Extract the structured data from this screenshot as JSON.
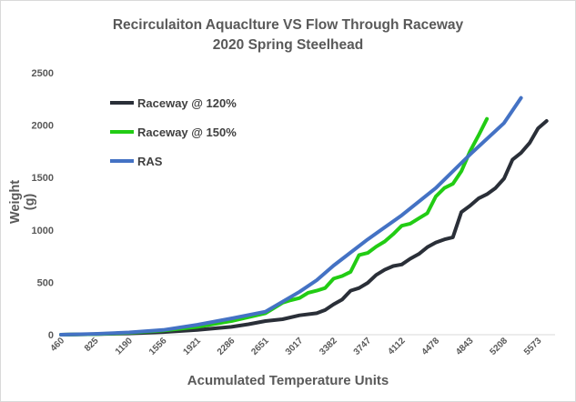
{
  "chart_data": {
    "type": "line",
    "title": "Recirculaiton Aquaclture VS Flow Through Raceway",
    "subtitle": "2020 Spring Steelhead",
    "xlabel": "Acumulated Temperature Units",
    "ylabel": "Weight (g)",
    "x_tick_labels": [
      "460",
      "825",
      "1190",
      "1556",
      "1921",
      "2286",
      "2651",
      "3017",
      "3382",
      "3747",
      "4112",
      "4478",
      "4843",
      "5208",
      "5573"
    ],
    "y_ticks": [
      0,
      500,
      1000,
      1500,
      2000,
      2500
    ],
    "xlim": [
      460,
      5755
    ],
    "ylim": [
      0,
      2500
    ],
    "grid": false,
    "legend_position": "top-left",
    "series": [
      {
        "name": "Raceway @ 120%",
        "color": "#2a2f38",
        "points": [
          [
            460,
            0
          ],
          [
            825,
            5
          ],
          [
            1190,
            12
          ],
          [
            1556,
            25
          ],
          [
            1921,
            45
          ],
          [
            2286,
            75
          ],
          [
            2470,
            100
          ],
          [
            2651,
            130
          ],
          [
            2834,
            148
          ],
          [
            3017,
            185
          ],
          [
            3200,
            205
          ],
          [
            3291,
            235
          ],
          [
            3382,
            290
          ],
          [
            3473,
            335
          ],
          [
            3564,
            420
          ],
          [
            3655,
            445
          ],
          [
            3747,
            495
          ],
          [
            3838,
            570
          ],
          [
            3930,
            620
          ],
          [
            4021,
            655
          ],
          [
            4112,
            670
          ],
          [
            4203,
            725
          ],
          [
            4295,
            770
          ],
          [
            4386,
            835
          ],
          [
            4478,
            880
          ],
          [
            4569,
            910
          ],
          [
            4660,
            930
          ],
          [
            4751,
            1170
          ],
          [
            4843,
            1230
          ],
          [
            4934,
            1300
          ],
          [
            5025,
            1340
          ],
          [
            5117,
            1400
          ],
          [
            5208,
            1490
          ],
          [
            5299,
            1670
          ],
          [
            5390,
            1735
          ],
          [
            5482,
            1830
          ],
          [
            5573,
            1970
          ],
          [
            5664,
            2040
          ]
        ]
      },
      {
        "name": "Raceway @ 150%",
        "color": "#22cc14",
        "points": [
          [
            460,
            0
          ],
          [
            825,
            5
          ],
          [
            1190,
            18
          ],
          [
            1556,
            40
          ],
          [
            1921,
            75
          ],
          [
            2286,
            130
          ],
          [
            2651,
            205
          ],
          [
            2834,
            305
          ],
          [
            2925,
            330
          ],
          [
            3017,
            350
          ],
          [
            3108,
            400
          ],
          [
            3200,
            420
          ],
          [
            3291,
            445
          ],
          [
            3382,
            535
          ],
          [
            3473,
            560
          ],
          [
            3564,
            600
          ],
          [
            3655,
            760
          ],
          [
            3747,
            780
          ],
          [
            3838,
            840
          ],
          [
            3930,
            890
          ],
          [
            4021,
            960
          ],
          [
            4112,
            1040
          ],
          [
            4203,
            1060
          ],
          [
            4295,
            1110
          ],
          [
            4386,
            1160
          ],
          [
            4478,
            1320
          ],
          [
            4569,
            1400
          ],
          [
            4660,
            1440
          ],
          [
            4751,
            1560
          ],
          [
            4843,
            1750
          ],
          [
            4934,
            1900
          ],
          [
            5025,
            2060
          ]
        ]
      },
      {
        "name": "RAS",
        "color": "#4472c4",
        "points": [
          [
            460,
            0
          ],
          [
            825,
            8
          ],
          [
            1190,
            22
          ],
          [
            1556,
            45
          ],
          [
            1921,
            95
          ],
          [
            2286,
            155
          ],
          [
            2651,
            220
          ],
          [
            3017,
            410
          ],
          [
            3200,
            520
          ],
          [
            3382,
            660
          ],
          [
            3747,
            910
          ],
          [
            4112,
            1140
          ],
          [
            4478,
            1400
          ],
          [
            4843,
            1720
          ],
          [
            5208,
            2020
          ],
          [
            5390,
            2260
          ]
        ]
      }
    ]
  }
}
